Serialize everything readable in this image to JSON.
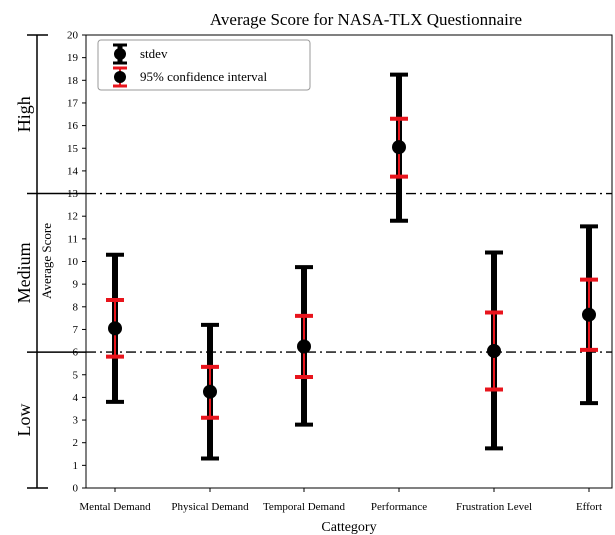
{
  "chart_data": {
    "type": "errorbar",
    "title": "Average Score for NASA-TLX Questionnaire",
    "xlabel": "Cattegory",
    "ylabel": "Average Score",
    "ylim": [
      0,
      20
    ],
    "yticks": [
      0,
      1,
      2,
      3,
      4,
      5,
      6,
      7,
      8,
      9,
      10,
      11,
      12,
      13,
      14,
      15,
      16,
      17,
      18,
      19,
      20
    ],
    "categories": [
      "Mental Demand",
      "Physical Demand",
      "Temporal Demand",
      "Performance",
      "Frustration Level",
      "Effort"
    ],
    "mean": [
      7.05,
      4.25,
      6.25,
      15.05,
      6.05,
      7.65
    ],
    "stdev_low": [
      3.8,
      1.3,
      2.8,
      11.8,
      1.75,
      3.75
    ],
    "stdev_high": [
      10.3,
      7.2,
      9.75,
      18.25,
      10.4,
      11.55
    ],
    "ci_low": [
      5.8,
      3.1,
      4.9,
      13.75,
      4.35,
      6.1
    ],
    "ci_high": [
      8.3,
      5.35,
      7.6,
      16.3,
      7.75,
      9.2
    ],
    "thresholds": [
      6,
      13
    ],
    "legend": {
      "position": "top-left",
      "entries": [
        {
          "label": "stdev",
          "color": "#000000"
        },
        {
          "label": "95% confidence interval",
          "color": "#e8141c"
        }
      ]
    },
    "zones": [
      {
        "label": "Low",
        "range": [
          0,
          6
        ]
      },
      {
        "label": "Medium",
        "range": [
          6,
          13
        ]
      },
      {
        "label": "High",
        "range": [
          13,
          20
        ]
      }
    ],
    "colors": {
      "stdev": "#000000",
      "ci": "#e8141c",
      "marker": "#000000"
    },
    "grid": false
  }
}
